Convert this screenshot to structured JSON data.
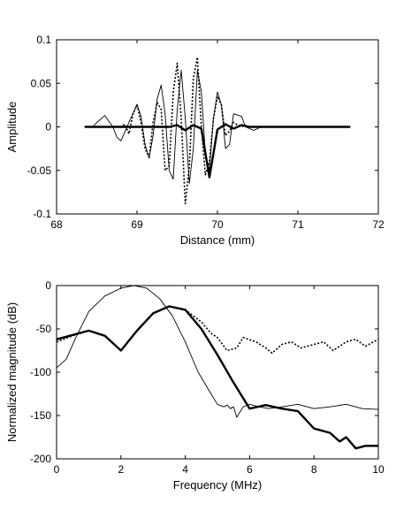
{
  "chart_data": [
    {
      "type": "line",
      "xlabel": "Distance (mm)",
      "ylabel": "Amplitude",
      "xlim": [
        68,
        72
      ],
      "ylim": [
        -0.1,
        0.1
      ],
      "xticks": [
        68,
        69,
        70,
        71,
        72
      ],
      "yticks": [
        -0.1,
        -0.05,
        0,
        0.05,
        0.1
      ],
      "xtick_labels": [
        "68",
        "69",
        "70",
        "71",
        "72"
      ],
      "ytick_labels": [
        "-0.1",
        "-0.05",
        "0",
        "0.05",
        "0.1"
      ],
      "grid": false,
      "series": [
        {
          "style": "thin",
          "x": [
            68.35,
            68.45,
            68.5,
            68.6,
            68.7,
            68.75,
            68.8,
            68.9,
            69.0,
            69.05,
            69.1,
            69.15,
            69.2,
            69.25,
            69.3,
            69.35,
            69.4,
            69.45,
            69.5,
            69.55,
            69.6,
            69.65,
            69.7,
            69.75,
            69.8,
            69.85,
            69.9,
            69.95,
            70.0,
            70.05,
            70.1,
            70.15,
            70.2,
            70.3,
            70.35,
            70.45,
            70.55,
            71.0,
            71.65
          ],
          "y": [
            0.0,
            0.0,
            0.005,
            0.013,
            0.0,
            -0.012,
            -0.016,
            0.005,
            0.026,
            0.012,
            -0.02,
            -0.036,
            -0.01,
            0.032,
            0.048,
            0.015,
            -0.05,
            -0.06,
            0.02,
            0.065,
            0.01,
            -0.065,
            -0.025,
            0.065,
            0.04,
            -0.03,
            -0.05,
            0.01,
            0.04,
            0.025,
            -0.025,
            -0.02,
            0.015,
            0.012,
            0.0,
            -0.004,
            0.0,
            0.0,
            0.0
          ]
        },
        {
          "style": "dotted",
          "x": [
            68.35,
            68.8,
            68.85,
            68.9,
            68.95,
            69.0,
            69.05,
            69.1,
            69.15,
            69.2,
            69.25,
            69.3,
            69.35,
            69.4,
            69.45,
            69.5,
            69.55,
            69.6,
            69.65,
            69.7,
            69.75,
            69.8,
            69.85,
            69.9,
            69.95,
            70.0,
            70.05,
            70.1,
            70.15,
            70.2,
            70.25,
            70.35,
            71.0,
            71.65
          ],
          "y": [
            0.0,
            0.0,
            0.003,
            -0.008,
            0.015,
            0.025,
            0.005,
            -0.025,
            -0.035,
            0.005,
            0.028,
            0.02,
            -0.05,
            -0.045,
            0.04,
            0.073,
            0.01,
            -0.088,
            -0.045,
            0.055,
            0.08,
            0.0,
            -0.055,
            -0.04,
            0.01,
            0.035,
            0.025,
            -0.01,
            -0.005,
            0.005,
            0.002,
            0.0,
            0.0,
            0.0
          ]
        },
        {
          "style": "thick",
          "x": [
            68.35,
            69.4,
            69.5,
            69.6,
            69.7,
            69.8,
            69.9,
            70.0,
            70.1,
            70.2,
            70.3,
            70.4,
            70.5,
            71.0,
            71.65
          ],
          "y": [
            0.0,
            0.0,
            0.002,
            -0.004,
            0.002,
            -0.002,
            -0.058,
            -0.003,
            0.003,
            -0.002,
            0.002,
            0.0,
            0.0,
            0.0,
            0.0
          ]
        }
      ]
    },
    {
      "type": "line",
      "xlabel": "Frequency (MHz)",
      "ylabel": "Normalized magnitude (dB)",
      "xlim": [
        0,
        10
      ],
      "ylim": [
        -200,
        0
      ],
      "xticks": [
        0,
        2,
        4,
        6,
        8,
        10
      ],
      "yticks": [
        -200,
        -150,
        -100,
        -50,
        0
      ],
      "xtick_labels": [
        "0",
        "2",
        "4",
        "6",
        "8",
        "10"
      ],
      "ytick_labels": [
        "-200",
        "-150",
        "-100",
        "-50",
        "0"
      ],
      "grid": false,
      "series": [
        {
          "style": "thin",
          "x": [
            0,
            0.3,
            0.6,
            1.0,
            1.5,
            2.0,
            2.4,
            2.8,
            3.2,
            3.6,
            4.0,
            4.4,
            4.8,
            5.0,
            5.2,
            5.3,
            5.4,
            5.5,
            5.6,
            5.8,
            6.0,
            6.3,
            6.6,
            7.0,
            7.5,
            8.0,
            8.5,
            9.0,
            9.5,
            10.0
          ],
          "y": [
            -95,
            -85,
            -60,
            -30,
            -12,
            -3,
            0,
            -3,
            -15,
            -35,
            -65,
            -100,
            -125,
            -137,
            -140,
            -138,
            -142,
            -140,
            -152,
            -140,
            -137,
            -140,
            -142,
            -140,
            -137,
            -142,
            -140,
            -137,
            -142,
            -143
          ]
        },
        {
          "style": "dotted",
          "x": [
            0,
            0.5,
            1.0,
            1.5,
            2.0,
            2.5,
            3.0,
            3.5,
            4.0,
            4.5,
            4.8,
            5.0,
            5.3,
            5.6,
            5.8,
            6.2,
            6.5,
            6.7,
            7.0,
            7.3,
            7.6,
            8.0,
            8.3,
            8.6,
            9.0,
            9.3,
            9.6,
            10.0
          ],
          "y": [
            -65,
            -58,
            -52,
            -58,
            -75,
            -52,
            -32,
            -24,
            -28,
            -42,
            -55,
            -60,
            -75,
            -72,
            -60,
            -65,
            -72,
            -78,
            -68,
            -65,
            -72,
            -68,
            -65,
            -75,
            -65,
            -62,
            -70,
            -62
          ]
        },
        {
          "style": "thick",
          "x": [
            0,
            0.5,
            1.0,
            1.5,
            2.0,
            2.5,
            3.0,
            3.5,
            4.0,
            4.5,
            5.0,
            5.5,
            6.0,
            6.5,
            7.0,
            7.5,
            8.0,
            8.5,
            8.8,
            9.0,
            9.3,
            9.6,
            10.0
          ],
          "y": [
            -62,
            -57,
            -52,
            -58,
            -75,
            -52,
            -32,
            -24,
            -28,
            -50,
            -80,
            -112,
            -142,
            -138,
            -142,
            -145,
            -165,
            -170,
            -180,
            -175,
            -188,
            -185,
            -185
          ]
        }
      ]
    }
  ]
}
